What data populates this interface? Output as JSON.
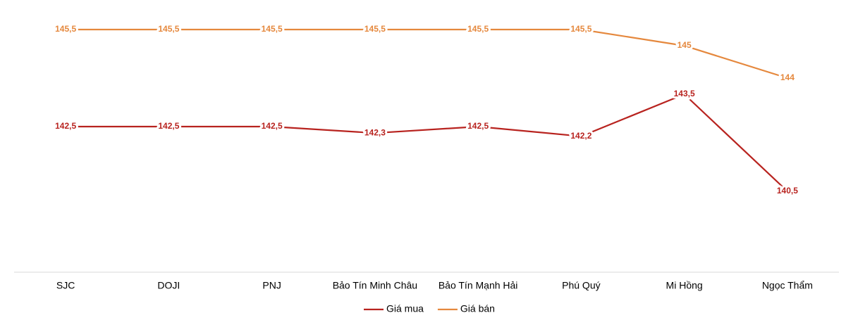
{
  "chart_data": {
    "type": "line",
    "categories": [
      "SJC",
      "DOJI",
      "PNJ",
      "Bảo Tín Minh Châu",
      "Bảo Tín Mạnh Hải",
      "Phú Quý",
      "Mi Hồng",
      "Ngọc Thẩm"
    ],
    "series": [
      {
        "name": "Giá mua",
        "color": "#b8231f",
        "values": [
          142.5,
          142.5,
          142.5,
          142.3,
          142.5,
          142.2,
          143.5,
          140.5
        ],
        "value_labels": [
          "142,5",
          "142,5",
          "142,5",
          "142,3",
          "142,5",
          "142,2",
          "143,5",
          "140,5"
        ]
      },
      {
        "name": "Giá bán",
        "color": "#e5883d",
        "values": [
          145.5,
          145.5,
          145.5,
          145.5,
          145.5,
          145.5,
          145,
          144
        ],
        "value_labels": [
          "145,5",
          "145,5",
          "145,5",
          "145,5",
          "145,5",
          "145,5",
          "145",
          "144"
        ]
      }
    ]
  }
}
